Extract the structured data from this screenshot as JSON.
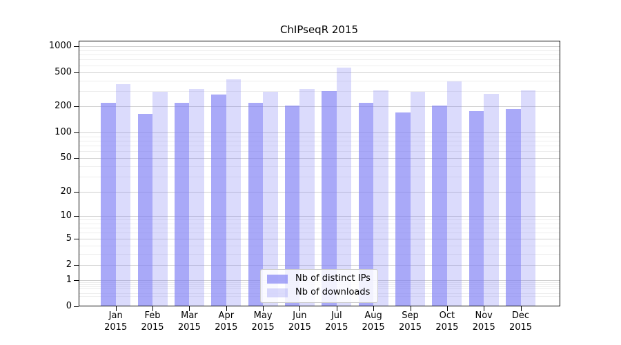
{
  "chart_data": {
    "type": "bar",
    "title": "ChIPseqR 2015",
    "months": [
      "Jan",
      "Feb",
      "Mar",
      "Apr",
      "May",
      "Jun",
      "Jul",
      "Aug",
      "Sep",
      "Oct",
      "Nov",
      "Dec"
    ],
    "year": "2015",
    "categories": [
      "Jan 2015",
      "Feb 2015",
      "Mar 2015",
      "Apr 2015",
      "May 2015",
      "Jun 2015",
      "Jul 2015",
      "Aug 2015",
      "Sep 2015",
      "Oct 2015",
      "Nov 2015",
      "Dec 2015"
    ],
    "series": [
      {
        "name": "Nb of distinct IPs",
        "color": "rgba(125,125,245,0.66)",
        "values": [
          220,
          164,
          221,
          275,
          220,
          207,
          303,
          223,
          172,
          206,
          177,
          188
        ]
      },
      {
        "name": "Nb of downloads",
        "color": "rgba(125,125,245,0.28)",
        "values": [
          365,
          296,
          318,
          412,
          299,
          321,
          570,
          307,
          297,
          392,
          280,
          309
        ]
      }
    ],
    "y_scale": "log10(value+1)",
    "y_ticks": [
      0,
      1,
      2,
      5,
      10,
      20,
      50,
      100,
      200,
      500,
      1000
    ],
    "y_minor_gridlines": [
      0.3,
      0.4,
      0.6,
      0.7,
      0.8,
      0.9,
      3,
      4,
      6,
      7,
      8,
      9,
      30,
      40,
      60,
      70,
      80,
      90,
      300,
      400,
      600,
      700,
      800,
      900
    ],
    "ylim": [
      0,
      1170
    ],
    "grid": "on",
    "legend_position": "lower-center",
    "colors": {
      "grid_major": "#cfcfcf",
      "grid_minor": "#ededed",
      "axis": "#000000",
      "text": "#000000",
      "legend_bg": "rgba(255,255,255,0.85)",
      "legend_border": "#cccccc"
    }
  }
}
